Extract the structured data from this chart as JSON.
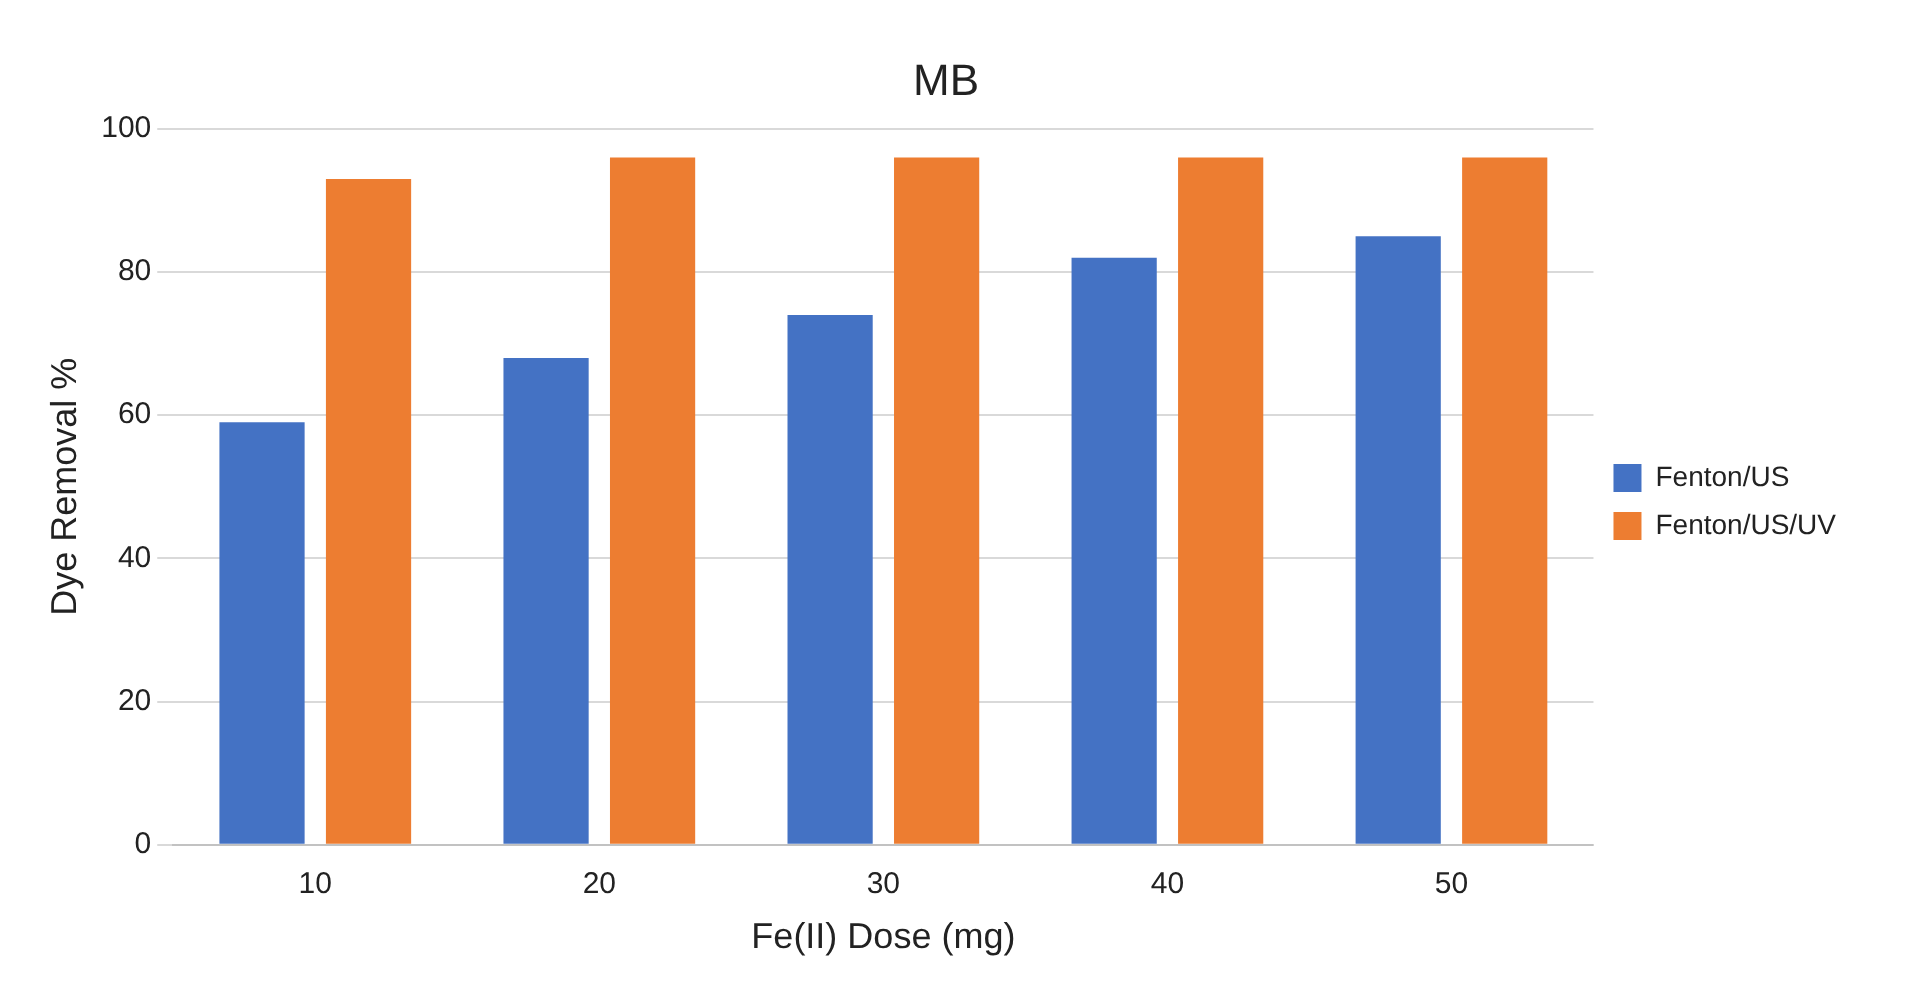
{
  "chart_data": {
    "type": "bar",
    "title": "MB",
    "xlabel": "Fe(II) Dose (mg)",
    "ylabel": "Dye Removal %",
    "categories": [
      "10",
      "20",
      "30",
      "40",
      "50"
    ],
    "series": [
      {
        "name": "Fenton/US",
        "color": "#4472c4",
        "values": [
          59,
          68,
          74,
          82,
          85
        ]
      },
      {
        "name": "Fenton/US/UV",
        "color": "#ed7d31",
        "values": [
          93,
          96,
          96,
          96,
          96
        ]
      }
    ],
    "ylim": [
      0,
      100
    ],
    "yticks": [
      0,
      20,
      40,
      60,
      80,
      100
    ],
    "grid": "y",
    "legend": "right"
  }
}
